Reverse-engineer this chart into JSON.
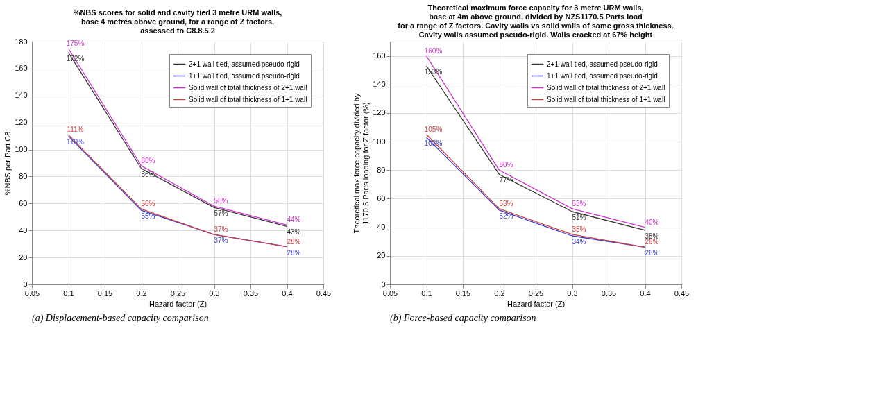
{
  "chart_data": [
    {
      "type": "line",
      "title": "%NBS scores for solid and cavity tied 3 metre URM walls,\nbase 4 metres above ground, for a range of Z factors,\nassessed to C8.8.5.2",
      "xlabel": "Hazard factor (Z)",
      "ylabel": "%NBS per Part C8",
      "x": [
        0.1,
        0.2,
        0.3,
        0.4
      ],
      "xlim": [
        0.05,
        0.45
      ],
      "xticks": [
        0.05,
        0.1,
        0.15,
        0.2,
        0.25,
        0.3,
        0.35,
        0.4,
        0.45
      ],
      "ylim": [
        0,
        180
      ],
      "yticks": [
        0,
        20,
        40,
        60,
        80,
        100,
        120,
        140,
        160,
        180
      ],
      "grid": true,
      "legend": "top right",
      "annotations": [
        "(a) Displacement-based capacity comparison"
      ],
      "series": [
        {
          "name": "2+1 wall tied, assumed pseudo-rigid",
          "color": "#333333",
          "values": [
            172,
            86,
            57,
            43
          ],
          "value_labels": [
            "172%",
            "86%",
            "57%",
            "43%"
          ]
        },
        {
          "name": "1+1 wall tied, assumed pseudo-rigid",
          "color": "#3b3bc8",
          "values": [
            110,
            55,
            37,
            28
          ],
          "value_labels": [
            "110%",
            "55%",
            "37%",
            "28%"
          ]
        },
        {
          "name": "Solid wall of total thickness of 2+1 wall",
          "color": "#cc33cc",
          "values": [
            175,
            88,
            58,
            44
          ],
          "value_labels": [
            "175%",
            "88%",
            "58%",
            "44%"
          ]
        },
        {
          "name": "Solid wall of total thickness of 1+1 wall",
          "color": "#cc4040",
          "values": [
            111,
            56,
            37,
            28
          ],
          "value_labels": [
            "111%",
            "56%",
            "37%",
            "28%"
          ]
        }
      ]
    },
    {
      "type": "line",
      "title": "Theoretical maximum force capacity for 3 metre URM walls,\nbase at 4m above ground, divided by NZS1170.5 Parts load\nfor a range of Z factors. Cavity walls vs solid walls of same gross thickness.\nCavity walls assumed pseudo-rigid. Walls cracked at 67% height",
      "xlabel": "Hazard factor (Z)",
      "ylabel": "Theoretical max force capacity divided by\n1170.5 Parts loading for Z factor (%)",
      "x": [
        0.1,
        0.2,
        0.3,
        0.4
      ],
      "xlim": [
        0.05,
        0.45
      ],
      "xticks": [
        0.05,
        0.1,
        0.15,
        0.2,
        0.25,
        0.3,
        0.35,
        0.4,
        0.45
      ],
      "ylim": [
        0,
        170
      ],
      "yticks": [
        0,
        20,
        40,
        60,
        80,
        100,
        120,
        140,
        160
      ],
      "grid": true,
      "legend": "top right",
      "annotations": [
        "(b) Force-based capacity comparison"
      ],
      "series": [
        {
          "name": "2+1 wall tied, assumed pseudo-rigid",
          "color": "#333333",
          "values": [
            153,
            77,
            51,
            38
          ],
          "value_labels": [
            "153%",
            "77%",
            "51%",
            "38%"
          ]
        },
        {
          "name": "1+1 wall tied, assumed pseudo-rigid",
          "color": "#3b3bc8",
          "values": [
            103,
            52,
            34,
            26
          ],
          "value_labels": [
            "103%",
            "52%",
            "34%",
            "26%"
          ]
        },
        {
          "name": "Solid wall of total thickness of 2+1 wall",
          "color": "#cc33cc",
          "values": [
            160,
            80,
            53,
            40
          ],
          "value_labels": [
            "160%",
            "80%",
            "53%",
            "40%"
          ]
        },
        {
          "name": "Solid wall of total thickness of 1+1 wall",
          "color": "#cc4040",
          "values": [
            105,
            53,
            35,
            26
          ],
          "value_labels": [
            "105%",
            "53%",
            "35%",
            "26%"
          ]
        }
      ]
    }
  ]
}
